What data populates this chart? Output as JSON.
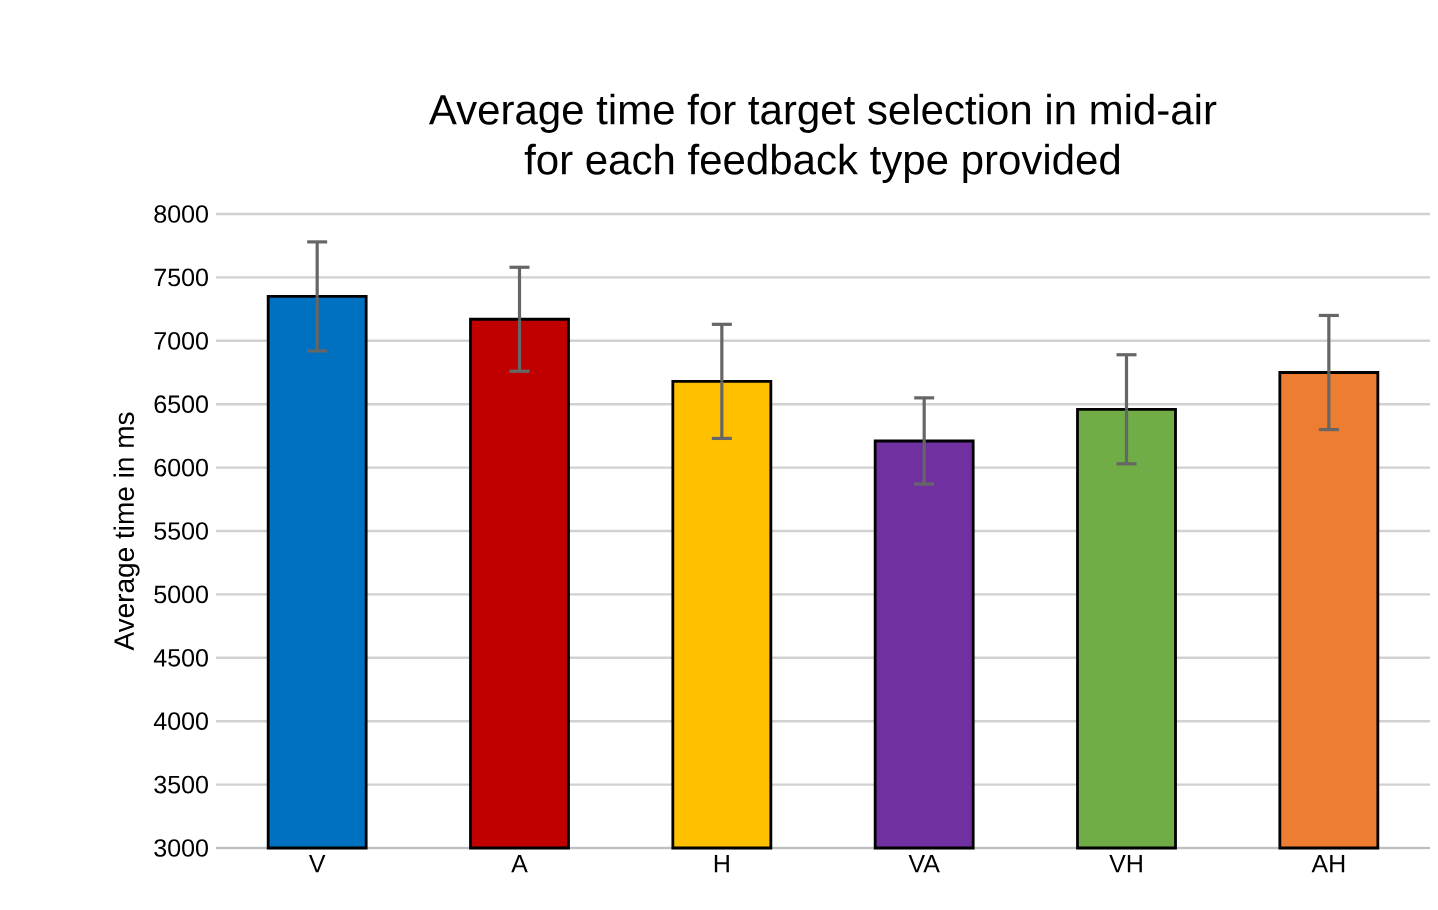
{
  "chart_data": {
    "type": "bar",
    "title": "Average time for target selection in mid-air\nfor each feedback type provided",
    "ylabel": "Average time in ms",
    "categories": [
      "V",
      "A",
      "H",
      "VA",
      "VH",
      "AH"
    ],
    "values": [
      7350,
      7170,
      6680,
      6210,
      6460,
      6750
    ],
    "errors": [
      430,
      410,
      450,
      340,
      430,
      450
    ],
    "colors": [
      "#0070c0",
      "#c00000",
      "#ffc000",
      "#7030a0",
      "#70ad47",
      "#ed7d31"
    ],
    "ylim": [
      3000,
      8000
    ],
    "yticks": [
      3000,
      3500,
      4000,
      4500,
      5000,
      5500,
      6000,
      6500,
      7000,
      7500,
      8000
    ],
    "grid": "y"
  }
}
